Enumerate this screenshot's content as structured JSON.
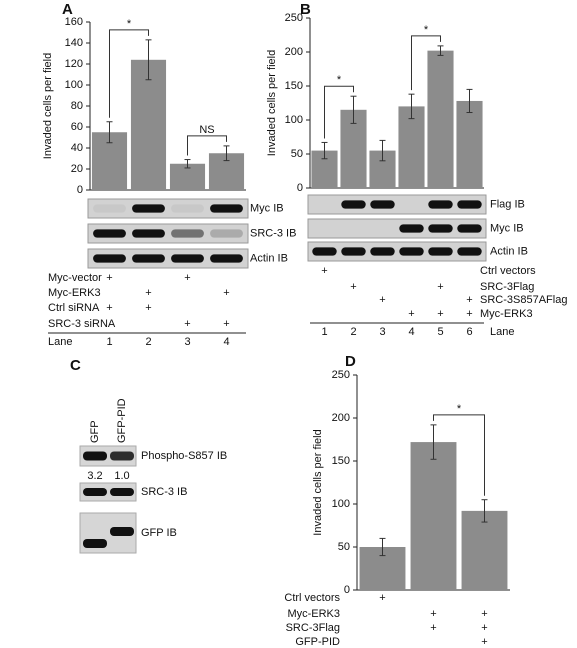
{
  "chart_data": [
    {
      "type": "bar",
      "panel": "A",
      "ylabel": "Invaded cells per field",
      "color": "#8c8c8c",
      "categories": [
        "1",
        "2",
        "3",
        "4"
      ],
      "x_label": "Lane",
      "values": [
        55,
        124,
        25,
        35
      ],
      "errors": [
        10,
        19,
        4,
        7
      ],
      "ylim": [
        0,
        160
      ],
      "yticks": [
        0,
        20,
        40,
        60,
        80,
        100,
        120,
        140,
        160
      ],
      "annotations": [
        "*",
        "NS"
      ],
      "blots": [
        "Myc IB",
        "SRC-3 IB",
        "Actin IB"
      ],
      "treatments": [
        {
          "name": "Myc-vector",
          "signs": [
            "+",
            null,
            "+",
            null
          ]
        },
        {
          "name": "Myc-ERK3",
          "signs": [
            null,
            "+",
            null,
            "+"
          ]
        },
        {
          "name": "Ctrl siRNA",
          "signs": [
            "+",
            "+",
            null,
            null
          ]
        },
        {
          "name": "SRC-3 siRNA",
          "signs": [
            null,
            null,
            "+",
            "+"
          ]
        }
      ]
    },
    {
      "type": "bar",
      "panel": "B",
      "ylabel": "Invaded cells per field",
      "color": "#8c8c8c",
      "categories": [
        "1",
        "2",
        "3",
        "4",
        "5",
        "6"
      ],
      "x_label": "Lane",
      "values": [
        55,
        115,
        55,
        120,
        202,
        128
      ],
      "errors": [
        12,
        20,
        15,
        18,
        7,
        17
      ],
      "ylim": [
        0,
        250
      ],
      "yticks": [
        0,
        50,
        100,
        150,
        200,
        250
      ],
      "annotations": [
        "*",
        "*"
      ],
      "blots": [
        "Flag IB",
        "Myc IB",
        "Actin IB"
      ],
      "treatments": [
        {
          "name": "Ctrl vectors",
          "signs": [
            "+",
            null,
            null,
            null,
            null,
            null
          ]
        },
        {
          "name": "SRC-3Flag",
          "signs": [
            null,
            "+",
            null,
            null,
            "+",
            null
          ]
        },
        {
          "name": "SRC-3S857AFlag",
          "signs": [
            null,
            null,
            "+",
            null,
            null,
            "+"
          ]
        },
        {
          "name": "Myc-ERK3",
          "signs": [
            null,
            null,
            null,
            "+",
            "+",
            "+"
          ]
        }
      ]
    },
    {
      "type": "bar",
      "panel": "D",
      "ylabel": "Invaded cells per field",
      "color": "#8c8c8c",
      "categories": [
        null,
        null,
        null
      ],
      "values": [
        50,
        172,
        92
      ],
      "errors": [
        10,
        20,
        13
      ],
      "ylim": [
        0,
        250
      ],
      "yticks": [
        0,
        50,
        100,
        150,
        200,
        250
      ],
      "annotations": [
        "*"
      ],
      "treatments": [
        {
          "name": "Ctrl vectors",
          "signs": [
            "+",
            null,
            null
          ]
        },
        {
          "name": "Myc-ERK3",
          "signs": [
            null,
            "+",
            "+"
          ]
        },
        {
          "name": "SRC-3Flag",
          "signs": [
            null,
            "+",
            "+"
          ]
        },
        {
          "name": "GFP-PID",
          "signs": [
            null,
            null,
            "+"
          ]
        }
      ]
    }
  ],
  "blot_panel": {
    "panel": "C",
    "lanes": [
      "GFP",
      "GFP-PID"
    ],
    "blots": [
      {
        "label": "Phospho-S857 IB",
        "quant": [
          "3.2",
          "1.0"
        ]
      },
      {
        "label": "SRC-3 IB"
      },
      {
        "label": "GFP IB"
      }
    ]
  }
}
